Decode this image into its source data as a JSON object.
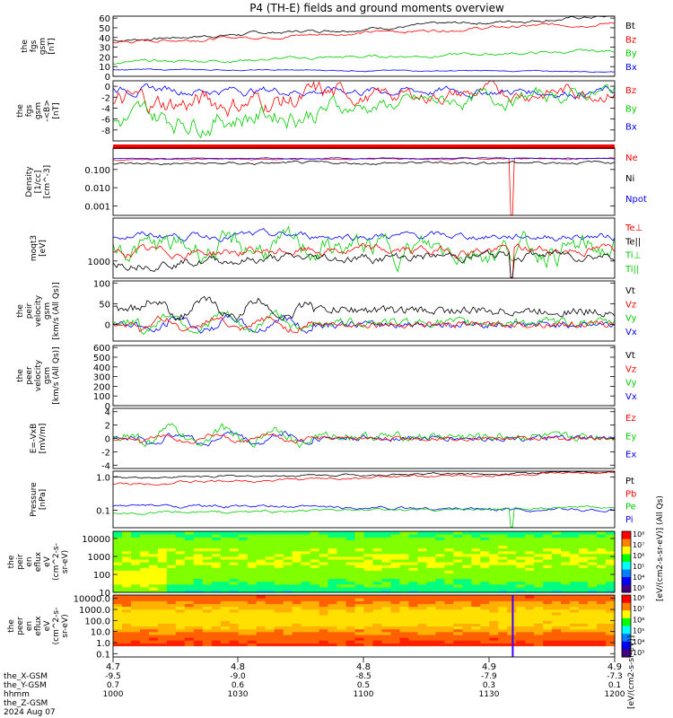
{
  "title": "P4 (TH-E) fields and ground moments overview",
  "panels": [
    {
      "id": "p1",
      "ylabel": [
        "the",
        "fgs",
        "gsm",
        "[nT]"
      ],
      "type": "line",
      "scale": "linear",
      "ylim": [
        0,
        62
      ],
      "ticks": [
        "60",
        "50",
        "40",
        "30",
        "20",
        "10",
        "0"
      ],
      "legend": [
        {
          "text": "Bt",
          "color": "#000000"
        },
        {
          "text": "Bz",
          "color": "#ff0000"
        },
        {
          "text": "By",
          "color": "#00cc00"
        },
        {
          "text": "Bx",
          "color": "#0000ff"
        }
      ],
      "series": [
        {
          "name": "Bt",
          "color": "#000000",
          "start": 37,
          "end": 62,
          "noise": 3,
          "pattern": "smooth"
        },
        {
          "name": "Bz",
          "color": "#ff0000",
          "start": 35,
          "end": 55,
          "noise": 3,
          "pattern": "smooth"
        },
        {
          "name": "By",
          "color": "#00cc00",
          "start": 14,
          "end": 26,
          "noise": 3,
          "pattern": "smooth"
        },
        {
          "name": "Bx",
          "color": "#0000ff",
          "start": 7,
          "end": 5,
          "noise": 1,
          "pattern": "smooth"
        }
      ]
    },
    {
      "id": "p2",
      "ylabel": [
        "the",
        "fgs",
        "gsm",
        "-<B>",
        "[nT]"
      ],
      "type": "line",
      "scale": "linear",
      "ylim": [
        -10,
        1
      ],
      "ticks": [
        "0",
        "-2",
        "-4",
        "-6",
        "-8"
      ],
      "legend": [
        {
          "text": "Bz",
          "color": "#ff0000"
        },
        {
          "text": "By",
          "color": "#00cc00"
        },
        {
          "text": "Bx",
          "color": "#0000ff"
        }
      ],
      "series": [
        {
          "name": "Bx",
          "color": "#0000ff",
          "start": -0.5,
          "end": -1.0,
          "noise": 1.5,
          "pattern": "smooth"
        },
        {
          "name": "Bz",
          "color": "#ff0000",
          "start": -3.5,
          "end": -0.5,
          "noise": 2.5,
          "pattern": "burst"
        },
        {
          "name": "By",
          "color": "#00cc00",
          "start": -6.5,
          "end": -1.0,
          "noise": 2.5,
          "pattern": "burst"
        }
      ]
    },
    {
      "id": "p3",
      "ylabel": [
        "Density",
        "[1/cc]",
        "[cm^-3]"
      ],
      "type": "line",
      "scale": "log",
      "ylim": [
        0.0003,
        1.5
      ],
      "ticks": [
        "0.100",
        "0.010",
        "0.001"
      ],
      "legend": [
        {
          "text": "Ne",
          "color": "#ff0000"
        },
        {
          "text": "Ni",
          "color": "#000000"
        },
        {
          "text": "Npot",
          "color": "#0000ff"
        }
      ],
      "series": [
        {
          "name": "Ne",
          "color": "#ff0000",
          "start": 0.35,
          "end": 0.4,
          "noise": 0.05,
          "pattern": "spike"
        },
        {
          "name": "Npot",
          "color": "#0000ff",
          "start": 0.4,
          "end": 0.42,
          "noise": 0.04,
          "pattern": "smooth"
        },
        {
          "name": "Ni",
          "color": "#000000",
          "start": 0.2,
          "end": 0.25,
          "noise": 0.1,
          "pattern": "smooth"
        }
      ]
    },
    {
      "id": "p4",
      "ylabel": [
        "moqt3",
        "[eV]"
      ],
      "type": "line",
      "scale": "log",
      "ylim": [
        300,
        20000
      ],
      "ticks": [
        "1000"
      ],
      "legend": [
        {
          "text": "Te⊥",
          "color": "#ff0000"
        },
        {
          "text": "Te||",
          "color": "#000000"
        },
        {
          "text": "Ti⊥",
          "color": "#00cc00"
        },
        {
          "text": "Ti||",
          "color": "#00cc00"
        }
      ],
      "series": [
        {
          "name": "Ti||",
          "color": "#0000ff",
          "start": 6000,
          "end": 5500,
          "noise": 0.15,
          "pattern": "smooth"
        },
        {
          "name": "Ti⊥",
          "color": "#00cc00",
          "start": 2500,
          "end": 2200,
          "noise": 0.25,
          "pattern": "burst"
        },
        {
          "name": "Te⊥",
          "color": "#ff0000",
          "start": 1800,
          "end": 2200,
          "noise": 0.2,
          "pattern": "spike"
        },
        {
          "name": "Te||",
          "color": "#000000",
          "start": 900,
          "end": 1600,
          "noise": 0.2,
          "pattern": "spike"
        }
      ]
    },
    {
      "id": "p5",
      "ylabel": [
        "the",
        "peir",
        "velocity",
        "gsm",
        "[km/s (All Qs)]"
      ],
      "type": "line",
      "scale": "linear",
      "ylim": [
        -40,
        105
      ],
      "ticks": [
        "100",
        "50",
        "0"
      ],
      "legend": [
        {
          "text": "Vt",
          "color": "#000000"
        },
        {
          "text": "Vz",
          "color": "#ff0000"
        },
        {
          "text": "Vy",
          "color": "#00cc00"
        },
        {
          "text": "Vx",
          "color": "#0000ff"
        }
      ],
      "series": [
        {
          "name": "Vx",
          "color": "#0000ff",
          "start": 0,
          "end": 0,
          "noise": 20,
          "pattern": "noisy"
        },
        {
          "name": "Vy",
          "color": "#00cc00",
          "start": 5,
          "end": 5,
          "noise": 25,
          "pattern": "noisy"
        },
        {
          "name": "Vz",
          "color": "#ff0000",
          "start": 0,
          "end": 0,
          "noise": 18,
          "pattern": "noisy"
        },
        {
          "name": "Vt",
          "color": "#000000",
          "start": 40,
          "end": 30,
          "noise": 25,
          "pattern": "noisy"
        }
      ]
    },
    {
      "id": "p6",
      "ylabel": [
        "the",
        "peer",
        "velocity",
        "gsm",
        "[km/s (All Qs)]"
      ],
      "type": "empty",
      "scale": "linear",
      "ylim": [
        0,
        620
      ],
      "ticks": [
        "600",
        "500",
        "400",
        "300",
        "200",
        "100",
        "0"
      ],
      "legend": [
        {
          "text": "Vt",
          "color": "#000000"
        },
        {
          "text": "Vz",
          "color": "#ff0000"
        },
        {
          "text": "Vy",
          "color": "#00cc00"
        },
        {
          "text": "Vx",
          "color": "#0000ff"
        }
      ],
      "series": []
    },
    {
      "id": "p7",
      "ylabel": [
        "E=-VxB",
        "[mV/m]"
      ],
      "type": "line",
      "scale": "linear",
      "ylim": [
        -4.5,
        4.5
      ],
      "ticks": [
        "4",
        "2",
        "0",
        "-2",
        "-4"
      ],
      "legend": [
        {
          "text": "Ez",
          "color": "#ff0000"
        },
        {
          "text": "Ey",
          "color": "#00cc00"
        },
        {
          "text": "Ex",
          "color": "#0000ff"
        }
      ],
      "series": [
        {
          "name": "Ex",
          "color": "#0000ff",
          "start": 0,
          "end": 0,
          "noise": 1.0,
          "pattern": "noisy"
        },
        {
          "name": "Ey",
          "color": "#00cc00",
          "start": 0.4,
          "end": 0.2,
          "noise": 1.5,
          "pattern": "noisy"
        },
        {
          "name": "Ez",
          "color": "#ff0000",
          "start": 0,
          "end": 0,
          "noise": 0.7,
          "pattern": "noisy"
        }
      ]
    },
    {
      "id": "p8",
      "ylabel": [
        "Pressure",
        "[nPa]"
      ],
      "type": "line",
      "scale": "log",
      "ylim": [
        0.03,
        1.5
      ],
      "ticks": [
        "1.0",
        "0.1"
      ],
      "legend": [
        {
          "text": "Pt",
          "color": "#000000"
        },
        {
          "text": "Pb",
          "color": "#ff0000"
        },
        {
          "text": "Pe",
          "color": "#00cc00"
        },
        {
          "text": "Pi",
          "color": "#0000ff"
        }
      ],
      "series": [
        {
          "name": "Pt",
          "color": "#000000",
          "start": 0.95,
          "end": 1.4,
          "noise": 0.04,
          "pattern": "smooth"
        },
        {
          "name": "Pb",
          "color": "#ff0000",
          "start": 0.6,
          "end": 1.3,
          "noise": 0.05,
          "pattern": "smooth"
        },
        {
          "name": "Pi",
          "color": "#0000ff",
          "start": 0.14,
          "end": 0.1,
          "noise": 0.06,
          "pattern": "smooth"
        },
        {
          "name": "Pe",
          "color": "#00cc00",
          "start": 0.08,
          "end": 0.12,
          "noise": 0.05,
          "pattern": "spike"
        }
      ]
    },
    {
      "id": "p9",
      "ylabel": [
        "the",
        "peir",
        "en",
        "eflux",
        "eV",
        "(cm^2-s-",
        "sr-eV)"
      ],
      "type": "spectrogram",
      "scale": "log",
      "ylim": [
        10,
        25000
      ],
      "ticks": [
        "10000",
        "1000",
        "100",
        "10"
      ],
      "colorbar": {
        "ticks": [
          "10⁸",
          "10⁷",
          "10⁶",
          "10⁵",
          "10⁴",
          "10³"
        ],
        "label": "[eV/(cm2-s-sr-eV)] (All Qs)"
      },
      "legend": [],
      "series": []
    },
    {
      "id": "p10",
      "ylabel": [
        "the",
        "peer",
        "en",
        "eflux",
        "eV",
        "(cm^2-s-",
        "sr-eV)"
      ],
      "type": "spectrogram2",
      "scale": "log",
      "ylim": [
        0.05,
        20000
      ],
      "ticks": [
        "10000.0",
        "1000.0",
        "100.0",
        "10.0",
        "1.0",
        "0.1"
      ],
      "colorbar": {
        "ticks": [
          "10⁸",
          "10⁷",
          "10⁶",
          "10⁵",
          "10⁴",
          "10³"
        ],
        "label": ""
      },
      "legend": [],
      "series": []
    }
  ],
  "xaxis": {
    "rows": [
      {
        "label": "the_X-GSM",
        "values": [
          "-9.5",
          "-9.0",
          "-8.5",
          "-7.9",
          "-7.3"
        ]
      },
      {
        "label": "the_Y-GSM",
        "values": [
          "0.7",
          "0.6",
          "0.5",
          "0.3",
          "0.1"
        ]
      },
      {
        "label": "the_Z-GSM",
        "values": [
          "4.7",
          "4.8",
          "4.8",
          "4.9",
          "4.9"
        ]
      },
      {
        "label": "hhmm",
        "values": [
          "1000",
          "1030",
          "1100",
          "1130",
          "1200"
        ]
      }
    ],
    "date": "2024 Aug 07",
    "colorbar_unit": "[eV/(cm2-s-sr-eV)]"
  },
  "chart_data": {
    "type": "line",
    "title": "P4 (TH-E) fields and ground moments overview",
    "x": [
      "1000",
      "1030",
      "1100",
      "1130",
      "1200"
    ],
    "xlabel": "hhmm",
    "date": "2024 Aug 07",
    "series": [
      {
        "name": "Bt",
        "values": [
          37,
          42,
          47,
          53,
          62
        ]
      },
      {
        "name": "Bz",
        "values": [
          35,
          40,
          45,
          50,
          55
        ]
      },
      {
        "name": "By",
        "values": [
          14,
          16,
          19,
          22,
          26
        ]
      },
      {
        "name": "Bx",
        "values": [
          7,
          6,
          6,
          6,
          5
        ]
      }
    ]
  }
}
